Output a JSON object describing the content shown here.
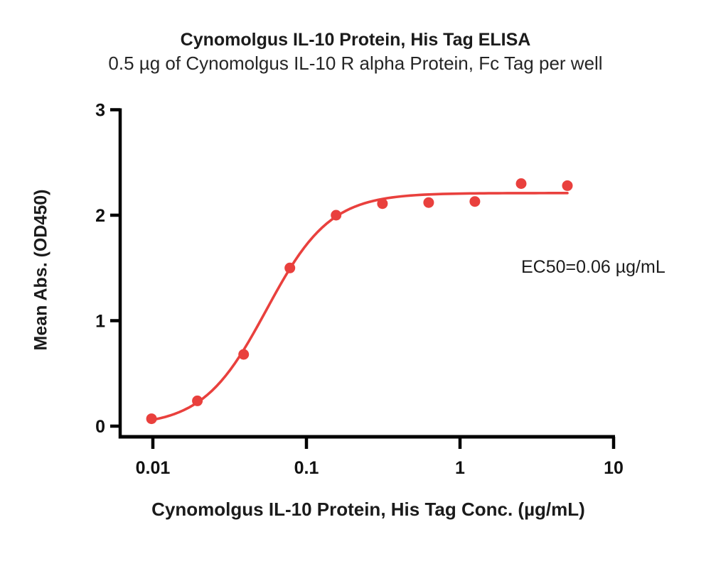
{
  "chart_data": {
    "type": "scatter",
    "title": "Cynomolgus IL-10 Protein, His Tag ELISA",
    "subtitle": "0.5 µg of Cynomolgus IL-10 R alpha Protein, Fc Tag per well",
    "xlabel": "Cynomolgus IL-10 Protein, His Tag Conc. (µg/mL)",
    "ylabel": "Mean Abs. (OD450)",
    "annotation": "EC50=0.06 µg/mL",
    "x_scale": "log10",
    "xlim": [
      0.01,
      10
    ],
    "ylim": [
      0,
      3
    ],
    "grid": false,
    "legend": "none",
    "x_ticks": [
      {
        "value": 0.01,
        "label": "0.01"
      },
      {
        "value": 0.1,
        "label": "0.1"
      },
      {
        "value": 1,
        "label": "1"
      },
      {
        "value": 10,
        "label": "10"
      }
    ],
    "y_ticks": [
      {
        "value": 0,
        "label": "0"
      },
      {
        "value": 1,
        "label": "1"
      },
      {
        "value": 2,
        "label": "2"
      },
      {
        "value": 3,
        "label": "3"
      }
    ],
    "series": [
      {
        "marker": "circle",
        "color": "#e9403d",
        "points": [
          {
            "x": 0.0098,
            "y": 0.07
          },
          {
            "x": 0.0195,
            "y": 0.24
          },
          {
            "x": 0.039,
            "y": 0.68
          },
          {
            "x": 0.078,
            "y": 1.5
          },
          {
            "x": 0.156,
            "y": 2.0
          },
          {
            "x": 0.3125,
            "y": 2.11
          },
          {
            "x": 0.625,
            "y": 2.12
          },
          {
            "x": 1.25,
            "y": 2.13
          },
          {
            "x": 2.5,
            "y": 2.3
          },
          {
            "x": 5,
            "y": 2.28
          }
        ]
      }
    ],
    "fit_curve": {
      "model": "4PL",
      "bottom": 0.0,
      "top": 2.21,
      "ec50": 0.055,
      "hill": 2.1,
      "x_start": 0.0098,
      "x_end": 5,
      "color": "#e9403d"
    },
    "colors": {
      "series_red": "#e9403d",
      "axis_black": "#000000",
      "text_dark": "#1b1b1b"
    }
  }
}
